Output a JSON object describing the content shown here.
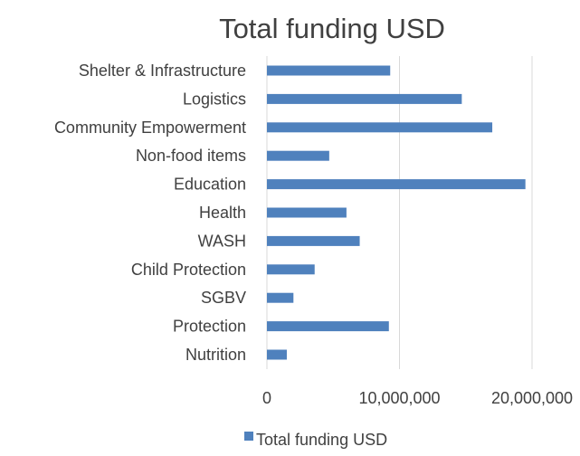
{
  "chart_data": {
    "type": "bar",
    "orientation": "horizontal",
    "title": "Total funding USD",
    "xlabel": "",
    "ylabel": "",
    "categories": [
      "Shelter & Infrastructure",
      "Logistics",
      "Community Empowerment",
      "Non-food items",
      "Education",
      "Health",
      "WASH",
      "Child Protection",
      "SGBV ",
      "Protection",
      "Nutrition"
    ],
    "series": [
      {
        "name": "Total funding USD",
        "color": "#4f81bd",
        "values": [
          9300000,
          14700000,
          17000000,
          4700000,
          19500000,
          6000000,
          7000000,
          3600000,
          2000000,
          9200000,
          1500000
        ]
      }
    ],
    "xlim": [
      0,
      20000000
    ],
    "xticks": [
      0,
      10000000,
      20000000
    ],
    "xtick_labels": [
      "0",
      "10,000,000",
      "20,000,000"
    ],
    "grid": "vertical",
    "legend": "bottom"
  }
}
